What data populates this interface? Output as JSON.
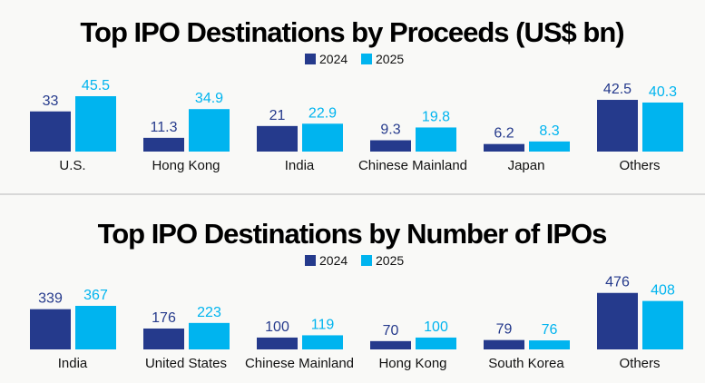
{
  "colors": {
    "2024": "#253a8c",
    "2025": "#00b4ef",
    "background": "#f9f9f7",
    "divider": "#d8d8d8"
  },
  "chart_data": [
    {
      "type": "bar",
      "title": "Top IPO Destinations by Proceeds (US$ bn)",
      "legend": "top-center",
      "categories": [
        "U.S.",
        "Hong Kong",
        "India",
        "Chinese Mainland",
        "Japan",
        "Others"
      ],
      "series": [
        {
          "name": "2024",
          "values": [
            33,
            11.3,
            21,
            9.3,
            6.2,
            42.5
          ],
          "labels": [
            "33",
            "11.3",
            "21",
            "9.3",
            "6.2",
            "42.5"
          ]
        },
        {
          "name": "2025",
          "values": [
            45.5,
            34.9,
            22.9,
            19.8,
            8.3,
            40.3
          ],
          "labels": [
            "45.5",
            "34.9",
            "22.9",
            "19.8",
            "8.3",
            "40.3"
          ]
        }
      ],
      "ylim": [
        0,
        50
      ],
      "grid": false
    },
    {
      "type": "bar",
      "title": "Top IPO Destinations by Number of IPOs",
      "legend": "top-center",
      "categories": [
        "India",
        "United States",
        "Chinese Mainland",
        "Hong Kong",
        "South Korea",
        "Others"
      ],
      "series": [
        {
          "name": "2024",
          "values": [
            339,
            176,
            100,
            70,
            79,
            476
          ],
          "labels": [
            "339",
            "176",
            "100",
            "70",
            "79",
            "476"
          ]
        },
        {
          "name": "2025",
          "values": [
            367,
            223,
            119,
            100,
            76,
            408
          ],
          "labels": [
            "367",
            "223",
            "119",
            "100",
            "76",
            "408"
          ]
        }
      ],
      "ylim": [
        0,
        500
      ],
      "grid": false
    }
  ]
}
